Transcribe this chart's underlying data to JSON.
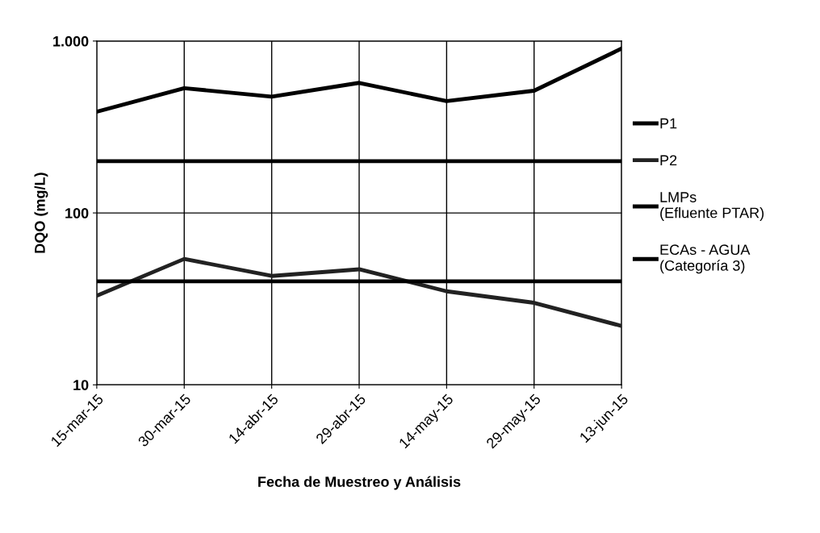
{
  "chart_data": {
    "type": "line",
    "xlabel": "Fecha de Muestreo y Análisis",
    "ylabel": "DQO (mg/L)",
    "categories": [
      "15-mar-15",
      "30-mar-15",
      "14-abr-15",
      "29-abr-15",
      "14-may-15",
      "29-may-15",
      "13-jun-15"
    ],
    "series": [
      {
        "name": "P1",
        "color": "#000000",
        "values": [
          388,
          532,
          475,
          571,
          447,
          514,
          904
        ]
      },
      {
        "name": "P2",
        "color": "#222222",
        "values": [
          33,
          54,
          43,
          47,
          35,
          30,
          22
        ]
      },
      {
        "name": "LMPs\n(Efluente PTAR)",
        "color": "#000000",
        "values": [
          200,
          200,
          200,
          200,
          200,
          200,
          200
        ]
      },
      {
        "name": "ECAs - AGUA\n(Categoría 3)",
        "color": "#000000",
        "values": [
          40,
          40,
          40,
          40,
          40,
          40,
          40
        ]
      }
    ],
    "log": "y",
    "ylim": [
      10,
      1000
    ],
    "yticks": [
      10,
      100,
      {
        "value": 1000,
        "label": "1.000"
      }
    ],
    "grid": true,
    "legend": "right",
    "marker": "none",
    "line_style": "solid"
  }
}
